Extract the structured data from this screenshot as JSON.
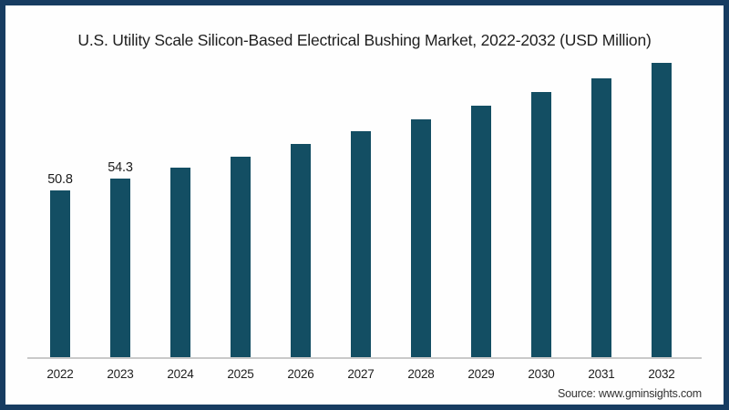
{
  "title": "U.S. Utility Scale Silicon-Based Electrical Bushing Market, 2022-2032 (USD Million)",
  "source": "Source: www.gminsights.com",
  "colors": {
    "frame": "#173c61",
    "bar": "#134e63",
    "axis_line": "#c9c9c9",
    "background": "#ffffff",
    "text": "#1f1f1f"
  },
  "chart_data": {
    "type": "bar",
    "title": "U.S. Utility Scale Silicon-Based Electrical Bushing Market, 2022-2032 (USD Million)",
    "categories": [
      "2022",
      "2023",
      "2024",
      "2025",
      "2026",
      "2027",
      "2028",
      "2029",
      "2030",
      "2031",
      "2032"
    ],
    "values": [
      50.8,
      54.3,
      57.8,
      61.1,
      65.0,
      68.9,
      72.5,
      76.6,
      80.8,
      84.9,
      89.6
    ],
    "data_labels": [
      "50.8",
      "54.3",
      "",
      "",
      "",
      "",
      "",
      "",
      "",
      "",
      ""
    ],
    "xlabel": "",
    "ylabel": "",
    "unit": "USD Million",
    "ylim": [
      0,
      100
    ],
    "grid": false,
    "legend": false,
    "note": "Only 2022 and 2023 bars carry visible value labels; remaining values estimated from bar heights"
  }
}
